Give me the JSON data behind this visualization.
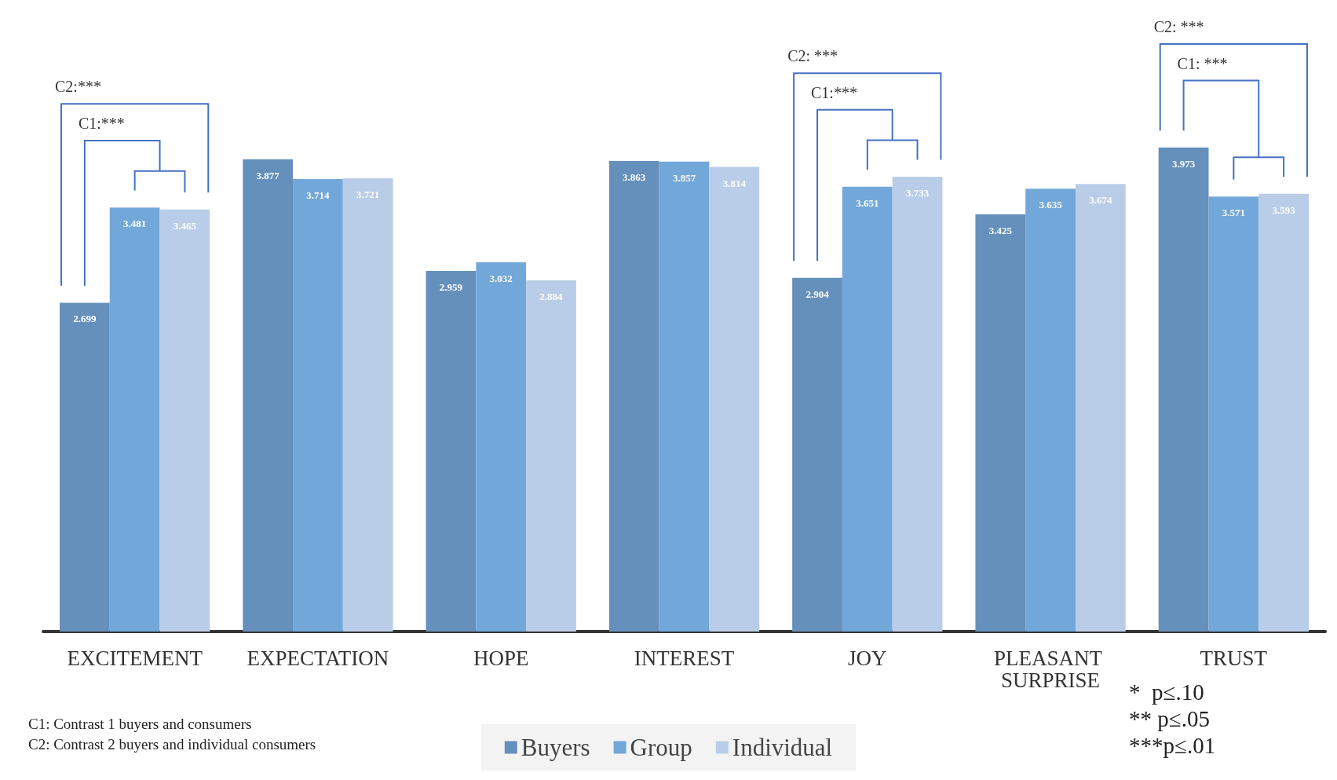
{
  "chart_data": {
    "type": "bar",
    "categories": [
      "EXCITEMENT",
      "EXPECTATION",
      "HOPE",
      "INTEREST",
      "JOY",
      "PLEASANT SURPRISE",
      "TRUST"
    ],
    "series": [
      {
        "name": "Buyers",
        "color": "#6590bb",
        "values": [
          2.699,
          3.877,
          2.959,
          3.863,
          2.904,
          3.425,
          3.973
        ]
      },
      {
        "name": "Group",
        "color": "#72a7d9",
        "values": [
          3.481,
          3.714,
          3.032,
          3.857,
          3.651,
          3.635,
          3.571
        ]
      },
      {
        "name": "Individual",
        "color": "#b9cde8",
        "values": [
          3.465,
          3.721,
          2.884,
          3.814,
          3.733,
          3.674,
          3.593
        ]
      }
    ],
    "data_labels": true,
    "legend": "bottom",
    "annotations": [
      "C2:***",
      "C1:***",
      "C2: ***",
      "C1:***",
      "C2: ***",
      "C1: ***",
      "C1: Contrast 1 buyers and consumers",
      "C2: Contrast 2 buyers and individual consumers",
      "*  p≤.10",
      "** p≤.05",
      "***p≤.01"
    ]
  }
}
